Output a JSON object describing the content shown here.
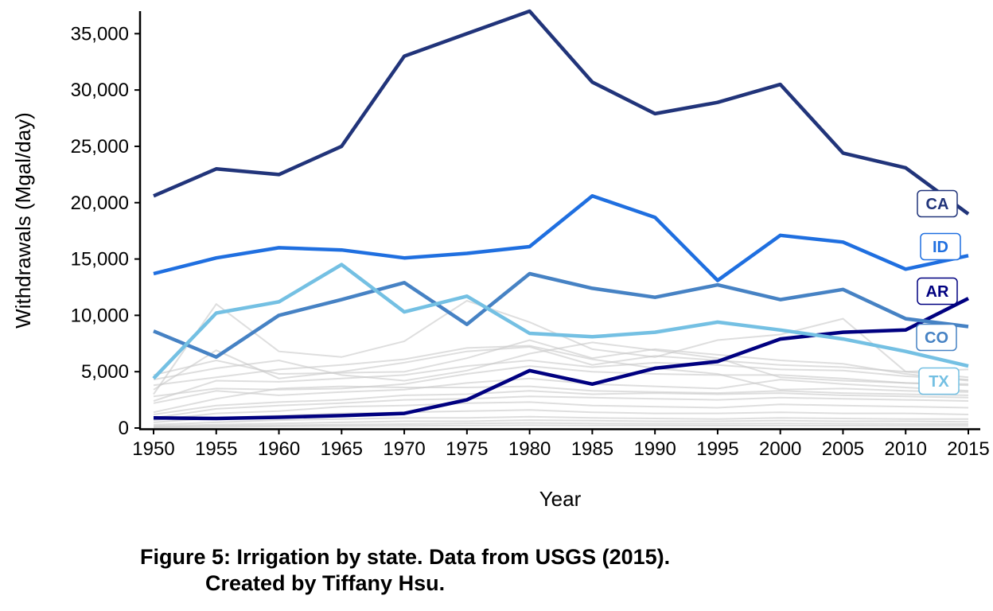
{
  "chart_data": {
    "type": "line",
    "xlabel": "Year",
    "ylabel": "Withdrawals (Mgal/day)",
    "x": [
      1950,
      1955,
      1960,
      1965,
      1970,
      1975,
      1980,
      1985,
      1990,
      1995,
      2000,
      2005,
      2010,
      2015
    ],
    "ylim": [
      0,
      37000
    ],
    "y_ticks": [
      0,
      5000,
      10000,
      15000,
      20000,
      25000,
      30000,
      35000
    ],
    "y_tick_labels": [
      "0",
      "5,000",
      "10,000",
      "15,000",
      "20,000",
      "25,000",
      "30,000",
      "35,000"
    ],
    "x_tick_labels": [
      "1950",
      "1955",
      "1960",
      "1965",
      "1970",
      "1975",
      "1980",
      "1985",
      "1990",
      "1995",
      "2000",
      "2005",
      "2010",
      "2015"
    ],
    "grid": false,
    "highlighted_series": [
      {
        "name": "CA",
        "color": "#21347a",
        "values": [
          20600,
          23000,
          22500,
          25000,
          33000,
          35000,
          37000,
          30700,
          27900,
          28900,
          30500,
          24400,
          23100,
          19000
        ]
      },
      {
        "name": "ID",
        "color": "#1f6fe0",
        "values": [
          13700,
          15100,
          16000,
          15800,
          15100,
          15500,
          16100,
          20600,
          18700,
          13100,
          17100,
          16500,
          14100,
          15300
        ]
      },
      {
        "name": "AR",
        "color": "#000080",
        "values": [
          900,
          850,
          950,
          1100,
          1300,
          2500,
          5100,
          3900,
          5300,
          5900,
          7900,
          8500,
          8700,
          11500
        ]
      },
      {
        "name": "CO",
        "color": "#4682c4",
        "values": [
          8600,
          6300,
          10000,
          11400,
          12900,
          9200,
          13700,
          12400,
          11600,
          12700,
          11400,
          12300,
          9700,
          9000
        ]
      },
      {
        "name": "TX",
        "color": "#74c0e3",
        "values": [
          4400,
          10200,
          11200,
          14500,
          10300,
          11700,
          8400,
          8100,
          8500,
          9400,
          8700,
          7900,
          6800,
          5500
        ]
      }
    ],
    "background_series_color": "#c8c8c8",
    "background_series": [
      [
        3000,
        11000,
        6800,
        6300,
        7700,
        11300,
        9400,
        7000,
        6300,
        7800,
        8300,
        9700,
        5000,
        5200
      ],
      [
        4700,
        6000,
        4800,
        4900,
        5000,
        6200,
        7800,
        6200,
        7000,
        6500,
        6000,
        5700,
        4800,
        4200
      ],
      [
        3400,
        6900,
        4400,
        5000,
        5800,
        6800,
        7200,
        5600,
        6400,
        6000,
        5600,
        5400,
        5000,
        4500
      ],
      [
        2400,
        4200,
        4100,
        4400,
        4700,
        5500,
        6000,
        5400,
        5800,
        5600,
        5200,
        5100,
        4600,
        4300
      ],
      [
        2800,
        3500,
        3400,
        3500,
        3900,
        4800,
        5500,
        5000,
        4800,
        4700,
        4700,
        4400,
        4000,
        3800
      ],
      [
        2200,
        3300,
        2900,
        3200,
        3400,
        4000,
        4400,
        3900,
        3700,
        3500,
        4300,
        3900,
        3600,
        3300
      ],
      [
        1400,
        2600,
        3500,
        3700,
        3600,
        3600,
        3700,
        3300,
        3200,
        3100,
        3300,
        3100,
        3000,
        2900
      ],
      [
        1200,
        2000,
        2300,
        2500,
        2900,
        3000,
        3300,
        3000,
        3100,
        3000,
        3100,
        2900,
        2800,
        2700
      ],
      [
        900,
        1700,
        2000,
        2200,
        2500,
        2600,
        2800,
        2700,
        2600,
        2500,
        2700,
        2600,
        2500,
        2400
      ],
      [
        700,
        1300,
        1500,
        1900,
        2000,
        2200,
        2300,
        2000,
        1900,
        1800,
        2100,
        2000,
        1900,
        1800
      ],
      [
        500,
        900,
        1100,
        1300,
        1400,
        1500,
        1600,
        1400,
        1300,
        1300,
        1400,
        1300,
        1300,
        1200
      ],
      [
        300,
        500,
        700,
        800,
        900,
        900,
        1000,
        900,
        850,
        800,
        900,
        850,
        800,
        800
      ],
      [
        200,
        300,
        400,
        500,
        600,
        600,
        700,
        650,
        600,
        600,
        650,
        600,
        600,
        550
      ],
      [
        100,
        200,
        250,
        300,
        350,
        400,
        450,
        400,
        380,
        380,
        400,
        380,
        360,
        350
      ],
      [
        50,
        100,
        150,
        180,
        200,
        220,
        250,
        230,
        220,
        210,
        220,
        210,
        200,
        200
      ],
      [
        4300,
        5300,
        6000,
        4700,
        4200,
        5100,
        6600,
        7600,
        6900,
        6200,
        4500,
        4200,
        4000,
        3900
      ],
      [
        3800,
        4500,
        5200,
        5600,
        6100,
        7100,
        7300,
        6100,
        5300,
        4800,
        3400,
        3500,
        3300,
        3200
      ]
    ]
  },
  "caption": {
    "line1": "Figure 5: Irrigation by state. Data from USGS (2015).",
    "line2": "Created by Tiffany Hsu."
  }
}
